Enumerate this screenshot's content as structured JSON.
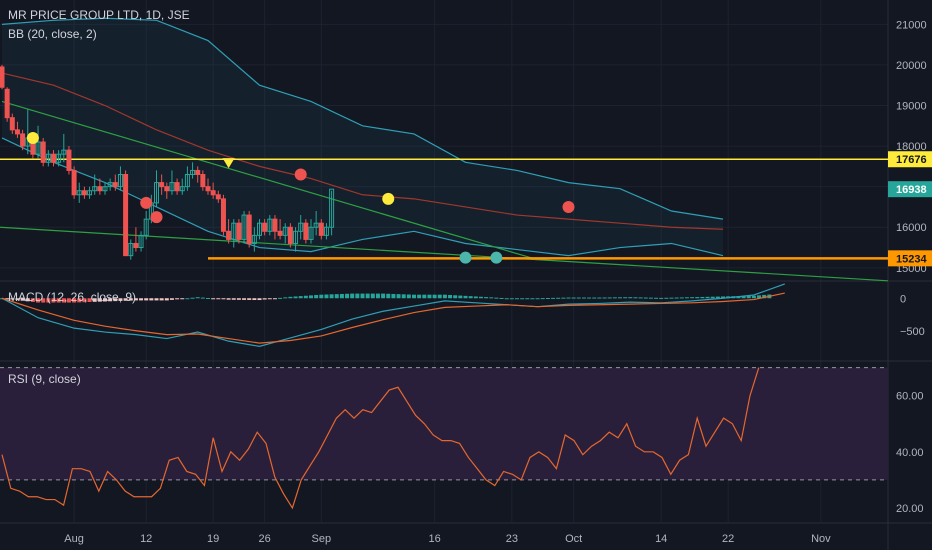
{
  "header": {
    "symbol_line": "MR PRICE GROUP LTD, 1D, JSE",
    "bb_label": "BB (20, close, 2)",
    "macd_label": "MACD (12, 26, close, 9)",
    "rsi_label": "RSI (9, close)"
  },
  "colors": {
    "background": "#131722",
    "up": "#26a69a",
    "down": "#ef5350",
    "bb_band": "#2f9fb5",
    "bb_basis": "#a0382c",
    "trend": "#2ea043",
    "resistance": "#ffeb3b",
    "support": "#ff9800",
    "macd": "#2f9fb5",
    "signal": "#e5672f",
    "rsi": "#e5672f",
    "rsi_fill": "#2a1f3a"
  },
  "chart_data": {
    "type": "candlestick",
    "x_tick_labels": [
      "Aug",
      "12",
      "19",
      "26",
      "Sep",
      "16",
      "23",
      "Oct",
      "14",
      "22",
      "Nov"
    ],
    "x_tick_index": [
      14,
      28,
      41,
      51,
      62,
      84,
      99,
      111,
      128,
      141,
      159
    ],
    "price_axis": {
      "ticks": [
        15000,
        16000,
        17000,
        18000,
        19000,
        20000,
        21000
      ],
      "range": [
        14700,
        21600
      ]
    },
    "price_levels": [
      {
        "label": "17676",
        "value": 17676,
        "role": "resistance"
      },
      {
        "label": "16938",
        "value": 16938,
        "role": "last"
      },
      {
        "label": "15234",
        "value": 15234,
        "role": "support"
      }
    ],
    "candles": [
      [
        19950,
        20000,
        19400,
        19450
      ],
      [
        19400,
        19450,
        18600,
        18700
      ],
      [
        18700,
        18800,
        18300,
        18400
      ],
      [
        18400,
        18600,
        18200,
        18300
      ],
      [
        18300,
        18400,
        17900,
        18000
      ],
      [
        18000,
        18900,
        17800,
        18200
      ],
      [
        18200,
        18300,
        17700,
        17800
      ],
      [
        17800,
        18500,
        17700,
        18100
      ],
      [
        18100,
        18200,
        17500,
        17600
      ],
      [
        17600,
        17900,
        17500,
        17800
      ],
      [
        17800,
        17900,
        17500,
        17600
      ],
      [
        17600,
        17900,
        17500,
        17800
      ],
      [
        17800,
        18300,
        17600,
        17900
      ],
      [
        17900,
        18000,
        17300,
        17400
      ],
      [
        17400,
        17500,
        16700,
        16800
      ],
      [
        16800,
        17100,
        16600,
        16900
      ],
      [
        16900,
        17000,
        16700,
        16800
      ],
      [
        16800,
        17000,
        16700,
        16900
      ],
      [
        16900,
        17300,
        16800,
        17000
      ],
      [
        17000,
        17200,
        16800,
        16900
      ],
      [
        16900,
        17100,
        16800,
        17000
      ],
      [
        17000,
        17200,
        16900,
        17100
      ],
      [
        17100,
        17300,
        16900,
        17000
      ],
      [
        17000,
        17500,
        16900,
        17300
      ],
      [
        17300,
        17400,
        15300,
        15300
      ],
      [
        15300,
        15700,
        15200,
        15600
      ],
      [
        15600,
        16000,
        15400,
        15500
      ],
      [
        15500,
        15900,
        15400,
        15800
      ],
      [
        15800,
        16400,
        15700,
        16200
      ],
      [
        16200,
        16800,
        16100,
        16600
      ],
      [
        16600,
        17400,
        16500,
        17100
      ],
      [
        17100,
        17300,
        16800,
        17000
      ],
      [
        17000,
        17100,
        16700,
        16900
      ],
      [
        16900,
        17400,
        16800,
        17100
      ],
      [
        17100,
        17200,
        16800,
        16900
      ],
      [
        16900,
        17200,
        16800,
        17000
      ],
      [
        17000,
        17500,
        16900,
        17300
      ],
      [
        17300,
        17600,
        17200,
        17400
      ],
      [
        17400,
        17500,
        17100,
        17300
      ],
      [
        17300,
        17400,
        16900,
        17000
      ],
      [
        17000,
        17200,
        16800,
        16900
      ],
      [
        16900,
        17100,
        16700,
        16800
      ],
      [
        16800,
        16900,
        16600,
        16700
      ],
      [
        16700,
        16800,
        15800,
        15900
      ],
      [
        15900,
        16200,
        15600,
        15700
      ],
      [
        15700,
        16200,
        15500,
        16100
      ],
      [
        16100,
        16200,
        15600,
        15700
      ],
      [
        15700,
        16400,
        15600,
        16300
      ],
      [
        16300,
        16400,
        15500,
        15600
      ],
      [
        15600,
        16000,
        15400,
        15800
      ],
      [
        15800,
        16200,
        15700,
        16100
      ],
      [
        16100,
        16200,
        15800,
        15900
      ],
      [
        15900,
        16300,
        15800,
        16200
      ],
      [
        16200,
        16300,
        15700,
        15900
      ],
      [
        15900,
        16200,
        15700,
        15800
      ],
      [
        15800,
        16100,
        15600,
        16000
      ],
      [
        16000,
        16100,
        15500,
        15600
      ],
      [
        15600,
        16000,
        15400,
        15900
      ],
      [
        15900,
        16300,
        15700,
        16100
      ],
      [
        16100,
        16200,
        15600,
        15700
      ],
      [
        15700,
        16200,
        15600,
        16000
      ],
      [
        16000,
        16400,
        15800,
        16100
      ],
      [
        16100,
        16200,
        15700,
        15800
      ],
      [
        15800,
        16100,
        15700,
        16000
      ],
      [
        16000,
        16900,
        15800,
        16938
      ]
    ],
    "bb_upper": [
      21000,
      21100,
      21150,
      21100,
      20600,
      19500,
      19100,
      18500,
      18300,
      17600,
      17400,
      17100,
      16950,
      16400,
      16200
    ],
    "bb_basis": [
      19800,
      19500,
      19000,
      18400,
      17900,
      17500,
      17200,
      16800,
      16700,
      16500,
      16300,
      16200,
      16100,
      16000,
      15950
    ],
    "bb_lower": [
      18200,
      17600,
      17100,
      16500,
      15900,
      15500,
      15400,
      15700,
      15900,
      15600,
      15450,
      15300,
      15500,
      15600,
      15300
    ],
    "bb_x_index": [
      0,
      10,
      20,
      30,
      40,
      50,
      60,
      70,
      80,
      90,
      100,
      110,
      120,
      130,
      140
    ],
    "markers": [
      {
        "kind": "yellow-dot",
        "index": 6,
        "value": 18200
      },
      {
        "kind": "yellow-dot",
        "index": 75,
        "value": 16700
      },
      {
        "kind": "yellow-triangle",
        "index": 44,
        "value": 17580
      },
      {
        "kind": "red-dot",
        "index": 28,
        "value": 16600
      },
      {
        "kind": "red-dot",
        "index": 30,
        "value": 16250
      },
      {
        "kind": "red-dot",
        "index": 58,
        "value": 17300
      },
      {
        "kind": "red-dot",
        "index": 110,
        "value": 16500
      },
      {
        "kind": "green-dot",
        "index": 90,
        "value": 15250
      },
      {
        "kind": "green-dot",
        "index": 96,
        "value": 15250
      }
    ],
    "macd_axis": {
      "ticks": [
        0,
        -500
      ],
      "range": [
        -950,
        250
      ]
    },
    "macd_line": [
      0,
      -300,
      -460,
      -520,
      -560,
      -620,
      -520,
      -660,
      -740,
      -610,
      -480,
      -320,
      -200,
      -120,
      -40,
      -70,
      -100,
      -130,
      -90,
      -80,
      -60,
      -70,
      -40,
      0,
      50,
      220
    ],
    "macd_signal": [
      0,
      -180,
      -340,
      -430,
      -500,
      -560,
      -550,
      -620,
      -690,
      -650,
      -580,
      -450,
      -330,
      -220,
      -140,
      -120,
      -100,
      -130,
      -110,
      -100,
      -90,
      -80,
      -70,
      -50,
      -20,
      80
    ],
    "macd_x_index": [
      0,
      7,
      14,
      20,
      26,
      32,
      38,
      44,
      50,
      56,
      62,
      68,
      74,
      80,
      86,
      92,
      98,
      104,
      110,
      116,
      122,
      128,
      134,
      140,
      146,
      152
    ],
    "rsi_axis": {
      "ticks": [
        20,
        40,
        60
      ],
      "range": [
        15,
        72
      ],
      "bands": [
        30,
        70
      ]
    },
    "rsi": [
      39,
      27,
      26,
      24,
      24,
      23,
      23,
      21,
      34,
      34,
      33,
      26,
      33,
      30,
      26,
      24,
      24,
      24,
      27,
      37,
      38,
      33,
      32,
      28,
      45,
      33,
      40,
      37,
      41,
      47,
      43,
      31,
      25,
      20,
      30,
      35,
      40,
      46,
      52,
      55,
      52,
      55,
      54,
      58,
      62,
      63,
      58,
      53,
      50,
      46,
      44,
      44,
      43,
      38,
      34,
      30,
      28,
      33,
      32,
      30,
      38,
      40,
      38,
      34,
      46,
      44,
      39,
      42,
      44,
      47,
      45,
      50,
      42,
      40,
      40,
      38,
      32,
      37,
      39,
      52,
      42,
      47,
      52,
      50,
      44,
      60,
      70
    ]
  }
}
